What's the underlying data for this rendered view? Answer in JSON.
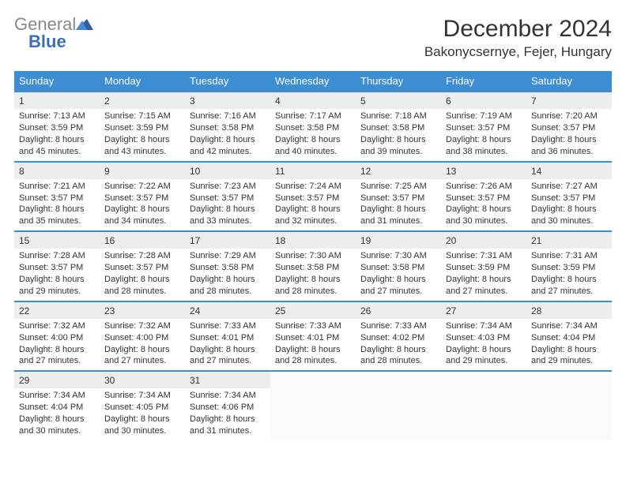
{
  "brand": {
    "word1": "General",
    "word2": "Blue"
  },
  "title": "December 2024",
  "location": "Bakonycsernye, Fejer, Hungary",
  "colors": {
    "header_bg": "#3c8dd1",
    "header_text": "#ffffff",
    "row_border": "#3c8dd1",
    "daynum_bg": "#ededed",
    "text": "#333333",
    "logo_gray": "#888888",
    "logo_blue": "#3b6fb6",
    "page_bg": "#ffffff"
  },
  "weekdays": [
    "Sunday",
    "Monday",
    "Tuesday",
    "Wednesday",
    "Thursday",
    "Friday",
    "Saturday"
  ],
  "weeks": [
    [
      {
        "n": "1",
        "sunrise": "7:13 AM",
        "sunset": "3:59 PM",
        "dh": "8",
        "dm": "45"
      },
      {
        "n": "2",
        "sunrise": "7:15 AM",
        "sunset": "3:59 PM",
        "dh": "8",
        "dm": "43"
      },
      {
        "n": "3",
        "sunrise": "7:16 AM",
        "sunset": "3:58 PM",
        "dh": "8",
        "dm": "42"
      },
      {
        "n": "4",
        "sunrise": "7:17 AM",
        "sunset": "3:58 PM",
        "dh": "8",
        "dm": "40"
      },
      {
        "n": "5",
        "sunrise": "7:18 AM",
        "sunset": "3:58 PM",
        "dh": "8",
        "dm": "39"
      },
      {
        "n": "6",
        "sunrise": "7:19 AM",
        "sunset": "3:57 PM",
        "dh": "8",
        "dm": "38"
      },
      {
        "n": "7",
        "sunrise": "7:20 AM",
        "sunset": "3:57 PM",
        "dh": "8",
        "dm": "36"
      }
    ],
    [
      {
        "n": "8",
        "sunrise": "7:21 AM",
        "sunset": "3:57 PM",
        "dh": "8",
        "dm": "35"
      },
      {
        "n": "9",
        "sunrise": "7:22 AM",
        "sunset": "3:57 PM",
        "dh": "8",
        "dm": "34"
      },
      {
        "n": "10",
        "sunrise": "7:23 AM",
        "sunset": "3:57 PM",
        "dh": "8",
        "dm": "33"
      },
      {
        "n": "11",
        "sunrise": "7:24 AM",
        "sunset": "3:57 PM",
        "dh": "8",
        "dm": "32"
      },
      {
        "n": "12",
        "sunrise": "7:25 AM",
        "sunset": "3:57 PM",
        "dh": "8",
        "dm": "31"
      },
      {
        "n": "13",
        "sunrise": "7:26 AM",
        "sunset": "3:57 PM",
        "dh": "8",
        "dm": "30"
      },
      {
        "n": "14",
        "sunrise": "7:27 AM",
        "sunset": "3:57 PM",
        "dh": "8",
        "dm": "30"
      }
    ],
    [
      {
        "n": "15",
        "sunrise": "7:28 AM",
        "sunset": "3:57 PM",
        "dh": "8",
        "dm": "29"
      },
      {
        "n": "16",
        "sunrise": "7:28 AM",
        "sunset": "3:57 PM",
        "dh": "8",
        "dm": "28"
      },
      {
        "n": "17",
        "sunrise": "7:29 AM",
        "sunset": "3:58 PM",
        "dh": "8",
        "dm": "28"
      },
      {
        "n": "18",
        "sunrise": "7:30 AM",
        "sunset": "3:58 PM",
        "dh": "8",
        "dm": "28"
      },
      {
        "n": "19",
        "sunrise": "7:30 AM",
        "sunset": "3:58 PM",
        "dh": "8",
        "dm": "27"
      },
      {
        "n": "20",
        "sunrise": "7:31 AM",
        "sunset": "3:59 PM",
        "dh": "8",
        "dm": "27"
      },
      {
        "n": "21",
        "sunrise": "7:31 AM",
        "sunset": "3:59 PM",
        "dh": "8",
        "dm": "27"
      }
    ],
    [
      {
        "n": "22",
        "sunrise": "7:32 AM",
        "sunset": "4:00 PM",
        "dh": "8",
        "dm": "27"
      },
      {
        "n": "23",
        "sunrise": "7:32 AM",
        "sunset": "4:00 PM",
        "dh": "8",
        "dm": "27"
      },
      {
        "n": "24",
        "sunrise": "7:33 AM",
        "sunset": "4:01 PM",
        "dh": "8",
        "dm": "27"
      },
      {
        "n": "25",
        "sunrise": "7:33 AM",
        "sunset": "4:01 PM",
        "dh": "8",
        "dm": "28"
      },
      {
        "n": "26",
        "sunrise": "7:33 AM",
        "sunset": "4:02 PM",
        "dh": "8",
        "dm": "28"
      },
      {
        "n": "27",
        "sunrise": "7:34 AM",
        "sunset": "4:03 PM",
        "dh": "8",
        "dm": "29"
      },
      {
        "n": "28",
        "sunrise": "7:34 AM",
        "sunset": "4:04 PM",
        "dh": "8",
        "dm": "29"
      }
    ],
    [
      {
        "n": "29",
        "sunrise": "7:34 AM",
        "sunset": "4:04 PM",
        "dh": "8",
        "dm": "30"
      },
      {
        "n": "30",
        "sunrise": "7:34 AM",
        "sunset": "4:05 PM",
        "dh": "8",
        "dm": "30"
      },
      {
        "n": "31",
        "sunrise": "7:34 AM",
        "sunset": "4:06 PM",
        "dh": "8",
        "dm": "31"
      },
      null,
      null,
      null,
      null
    ]
  ],
  "labels": {
    "sunrise_prefix": "Sunrise: ",
    "sunset_prefix": "Sunset: ",
    "daylight_prefix": "Daylight: ",
    "hours_word": " hours",
    "and_word": "and ",
    "minutes_suffix": " minutes."
  },
  "fonts": {
    "title_size": 30,
    "location_size": 17,
    "weekday_size": 13,
    "daynum_size": 12,
    "cell_size": 11
  }
}
